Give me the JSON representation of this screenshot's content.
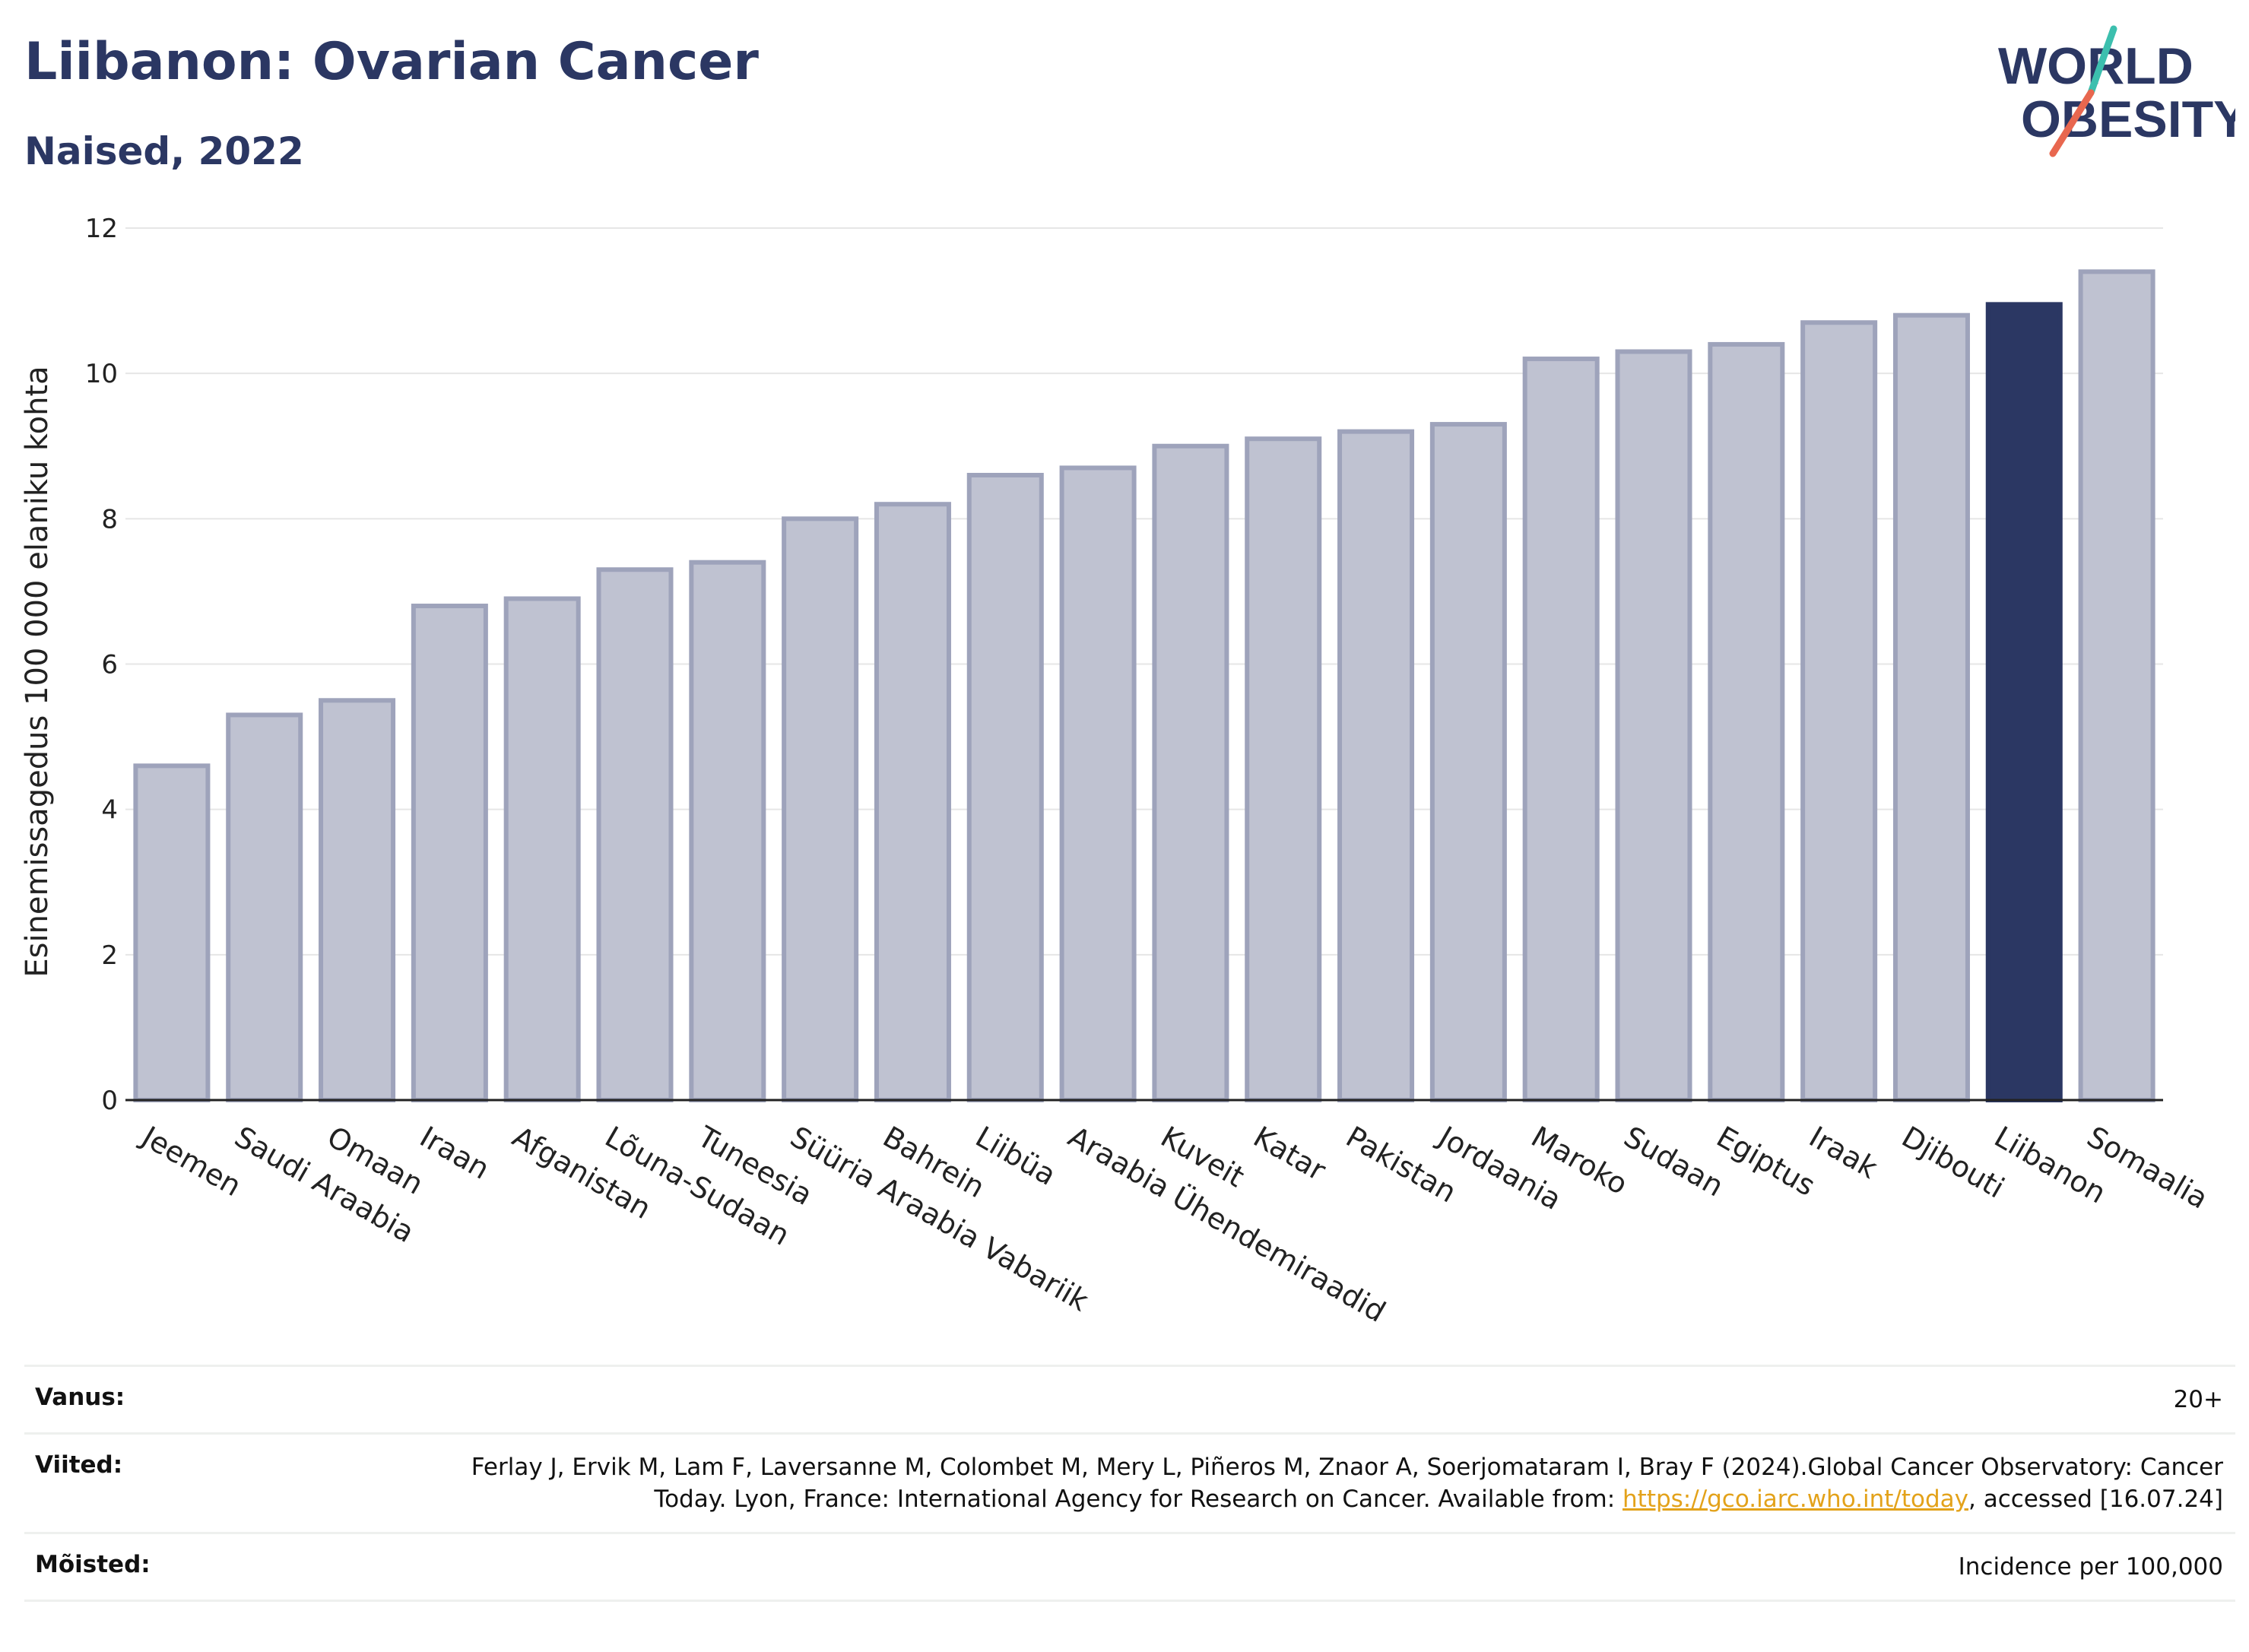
{
  "header": {
    "title": "Liibanon: Ovarian Cancer",
    "subtitle": "Naised, 2022"
  },
  "logo": {
    "line1": "WORLD",
    "line2": "OBESITY",
    "slash_colors": [
      "#3cbfae",
      "#e8674f"
    ],
    "text_color": "#2b3763"
  },
  "colors": {
    "highlight": "#2b3763",
    "bar": "#bfc2d1",
    "bar_border": "#9ea3bb"
  },
  "chart_data": {
    "type": "bar",
    "categories": [
      "Jeemen",
      "Saudi Araabia",
      "Omaan",
      "Iraan",
      "Afganistan",
      "Lõuna-Sudaan",
      "Tuneesia",
      "Süüria Araabia Vabariik",
      "Bahrein",
      "Liibüa",
      "Araabia Ühendemiraadid",
      "Kuveit",
      "Katar",
      "Pakistan",
      "Jordaania",
      "Maroko",
      "Sudaan",
      "Egiptus",
      "Iraak",
      "Djibouti",
      "Liibanon",
      "Somaalia"
    ],
    "values": [
      4.6,
      5.3,
      5.5,
      6.8,
      6.9,
      7.3,
      7.4,
      8.0,
      8.2,
      8.6,
      8.7,
      9.0,
      9.1,
      9.2,
      9.3,
      10.2,
      10.3,
      10.4,
      10.7,
      10.8,
      10.95,
      11.4
    ],
    "highlight": "Liibanon",
    "ylabel": "Esinemissagedus 100 000 elaniku kohta",
    "ylim": [
      0,
      12
    ],
    "yticks": [
      0,
      2,
      4,
      6,
      8,
      10,
      12
    ],
    "grid": true
  },
  "meta": {
    "rows": [
      {
        "key": "Vanus:",
        "value": "20+"
      },
      {
        "key": "Viited:",
        "value_before_link": "Ferlay J, Ervik M, Lam F, Laversanne M, Colombet M, Mery L, Piñeros M, Znaor A, Soerjomataram I, Bray F (2024).Global Cancer Observatory: Cancer Today. Lyon, France: International Agency for Research on Cancer. Available from: ",
        "link": "https://gco.iarc.who.int/today",
        "value_after_link": ", accessed [16.07.24]"
      },
      {
        "key": "Mõisted:",
        "value": "Incidence per 100,000"
      }
    ]
  }
}
